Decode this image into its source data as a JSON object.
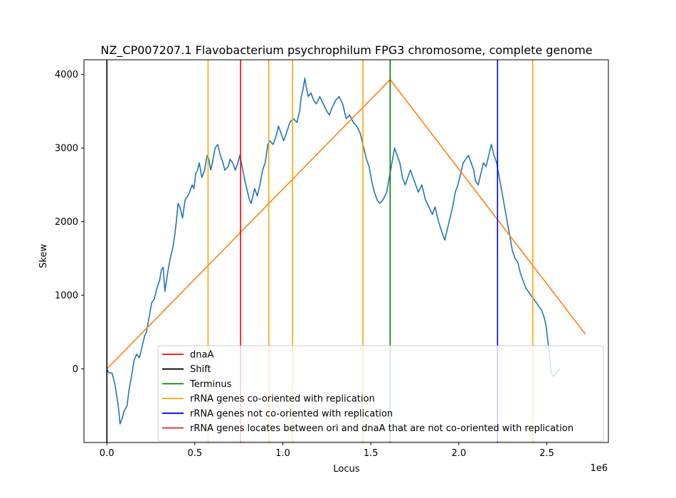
{
  "chart_data": {
    "type": "line",
    "title": "NZ_CP007207.1 Flavobacterium psychrophilum FPG3 chromosome, complete genome",
    "xlabel": "Locus",
    "ylabel": "Skew",
    "x_offset_label": "1e6",
    "xlim": [
      -130000,
      2850000
    ],
    "ylim": [
      -1000,
      4200
    ],
    "x_ticks": [
      0,
      500000,
      1000000,
      1500000,
      2000000,
      2500000
    ],
    "x_tick_labels": [
      "0.0",
      "0.5",
      "1.0",
      "1.5",
      "2.0",
      "2.5"
    ],
    "y_ticks": [
      0,
      1000,
      2000,
      3000,
      4000
    ],
    "y_tick_labels": [
      "0",
      "1000",
      "2000",
      "3000",
      "4000"
    ],
    "grid": false,
    "legend_position": "lower-right",
    "skew_series": {
      "color": "#1f77b4",
      "points": [
        [
          0,
          0
        ],
        [
          10000,
          -50
        ],
        [
          30000,
          -60
        ],
        [
          45000,
          -200
        ],
        [
          55000,
          -350
        ],
        [
          65000,
          -500
        ],
        [
          75000,
          -750
        ],
        [
          90000,
          -650
        ],
        [
          100000,
          -560
        ],
        [
          115000,
          -500
        ],
        [
          125000,
          -300
        ],
        [
          140000,
          -100
        ],
        [
          155000,
          120
        ],
        [
          170000,
          200
        ],
        [
          185000,
          150
        ],
        [
          200000,
          300
        ],
        [
          215000,
          450
        ],
        [
          225000,
          500
        ],
        [
          240000,
          700
        ],
        [
          255000,
          900
        ],
        [
          270000,
          950
        ],
        [
          285000,
          1100
        ],
        [
          300000,
          1200
        ],
        [
          310000,
          1350
        ],
        [
          320000,
          1380
        ],
        [
          330000,
          1050
        ],
        [
          345000,
          1300
        ],
        [
          360000,
          1500
        ],
        [
          375000,
          1650
        ],
        [
          385000,
          1800
        ],
        [
          395000,
          2000
        ],
        [
          405000,
          2250
        ],
        [
          415000,
          2200
        ],
        [
          430000,
          2050
        ],
        [
          445000,
          2300
        ],
        [
          460000,
          2350
        ],
        [
          470000,
          2400
        ],
        [
          485000,
          2500
        ],
        [
          495000,
          2450
        ],
        [
          505000,
          2650
        ],
        [
          515000,
          2700
        ],
        [
          525000,
          2800
        ],
        [
          540000,
          2600
        ],
        [
          555000,
          2700
        ],
        [
          570000,
          2900
        ],
        [
          580000,
          2850
        ],
        [
          590000,
          2700
        ],
        [
          600000,
          2800
        ],
        [
          615000,
          3000
        ],
        [
          630000,
          3050
        ],
        [
          645000,
          2900
        ],
        [
          660000,
          2800
        ],
        [
          670000,
          2700
        ],
        [
          690000,
          2750
        ],
        [
          700000,
          2850
        ],
        [
          715000,
          2800
        ],
        [
          730000,
          2700
        ],
        [
          745000,
          2800
        ],
        [
          755000,
          2900
        ],
        [
          765000,
          2800
        ],
        [
          780000,
          2600
        ],
        [
          795000,
          2450
        ],
        [
          810000,
          2300
        ],
        [
          820000,
          2250
        ],
        [
          830000,
          2350
        ],
        [
          840000,
          2450
        ],
        [
          855000,
          2350
        ],
        [
          870000,
          2500
        ],
        [
          885000,
          2700
        ],
        [
          900000,
          2800
        ],
        [
          915000,
          3050
        ],
        [
          925000,
          3100
        ],
        [
          945000,
          3050
        ],
        [
          960000,
          3150
        ],
        [
          975000,
          3300
        ],
        [
          990000,
          3200
        ],
        [
          1005000,
          3100
        ],
        [
          1020000,
          3200
        ],
        [
          1040000,
          3350
        ],
        [
          1060000,
          3400
        ],
        [
          1080000,
          3350
        ],
        [
          1095000,
          3500
        ],
        [
          1105000,
          3700
        ],
        [
          1115000,
          3800
        ],
        [
          1125000,
          3950
        ],
        [
          1135000,
          3800
        ],
        [
          1145000,
          3700
        ],
        [
          1160000,
          3750
        ],
        [
          1175000,
          3650
        ],
        [
          1190000,
          3600
        ],
        [
          1210000,
          3700
        ],
        [
          1230000,
          3600
        ],
        [
          1250000,
          3500
        ],
        [
          1265000,
          3450
        ],
        [
          1280000,
          3550
        ],
        [
          1300000,
          3650
        ],
        [
          1320000,
          3700
        ],
        [
          1340000,
          3600
        ],
        [
          1360000,
          3400
        ],
        [
          1380000,
          3450
        ],
        [
          1400000,
          3350
        ],
        [
          1420000,
          3300
        ],
        [
          1440000,
          3200
        ],
        [
          1455000,
          3050
        ],
        [
          1465000,
          2950
        ],
        [
          1475000,
          2850
        ],
        [
          1490000,
          2750
        ],
        [
          1505000,
          2550
        ],
        [
          1520000,
          2400
        ],
        [
          1535000,
          2300
        ],
        [
          1550000,
          2250
        ],
        [
          1570000,
          2300
        ],
        [
          1590000,
          2400
        ],
        [
          1605000,
          2600
        ],
        [
          1620000,
          2800
        ],
        [
          1635000,
          3000
        ],
        [
          1650000,
          2900
        ],
        [
          1665000,
          2800
        ],
        [
          1680000,
          2600
        ],
        [
          1695000,
          2500
        ],
        [
          1710000,
          2600
        ],
        [
          1725000,
          2700
        ],
        [
          1740000,
          2600
        ],
        [
          1755000,
          2500
        ],
        [
          1770000,
          2400
        ],
        [
          1790000,
          2500
        ],
        [
          1810000,
          2300
        ],
        [
          1830000,
          2200
        ],
        [
          1850000,
          2100
        ],
        [
          1865000,
          2200
        ],
        [
          1885000,
          2000
        ],
        [
          1905000,
          1850
        ],
        [
          1920000,
          1750
        ],
        [
          1935000,
          1900
        ],
        [
          1950000,
          2050
        ],
        [
          1965000,
          2200
        ],
        [
          1980000,
          2400
        ],
        [
          1995000,
          2500
        ],
        [
          2010000,
          2650
        ],
        [
          2025000,
          2800
        ],
        [
          2040000,
          2850
        ],
        [
          2055000,
          2900
        ],
        [
          2070000,
          2800
        ],
        [
          2085000,
          2700
        ],
        [
          2095000,
          2550
        ],
        [
          2110000,
          2500
        ],
        [
          2125000,
          2650
        ],
        [
          2140000,
          2800
        ],
        [
          2155000,
          2750
        ],
        [
          2170000,
          2900
        ],
        [
          2185000,
          3050
        ],
        [
          2200000,
          2900
        ],
        [
          2215000,
          2800
        ],
        [
          2230000,
          2600
        ],
        [
          2245000,
          2400
        ],
        [
          2260000,
          2200
        ],
        [
          2275000,
          2000
        ],
        [
          2290000,
          1800
        ],
        [
          2305000,
          1600
        ],
        [
          2320000,
          1500
        ],
        [
          2335000,
          1450
        ],
        [
          2350000,
          1300
        ],
        [
          2365000,
          1200
        ],
        [
          2380000,
          1100
        ],
        [
          2395000,
          1050
        ],
        [
          2410000,
          1000
        ],
        [
          2425000,
          950
        ],
        [
          2440000,
          900
        ],
        [
          2455000,
          850
        ],
        [
          2470000,
          800
        ],
        [
          2485000,
          700
        ],
        [
          2495000,
          600
        ],
        [
          2505000,
          400
        ],
        [
          2515000,
          200
        ],
        [
          2525000,
          -50
        ],
        [
          2535000,
          -100
        ],
        [
          2545000,
          -80
        ],
        [
          2555000,
          -50
        ],
        [
          2565000,
          -20
        ],
        [
          2575000,
          0
        ]
      ]
    },
    "triangle_series": {
      "color": "#ff7f0e",
      "points": [
        [
          0,
          0
        ],
        [
          1610000,
          3930
        ],
        [
          2720000,
          470
        ]
      ]
    },
    "vertical_markers": [
      {
        "x": 0,
        "color": "#000000",
        "label": "Shift"
      },
      {
        "x": 575000,
        "color": "#ffa500",
        "label": "rRNA genes co-oriented with replication"
      },
      {
        "x": 760000,
        "color": "#ff0000",
        "label": "dnaA"
      },
      {
        "x": 920000,
        "color": "#ffa500",
        "label": "rRNA genes co-oriented with replication"
      },
      {
        "x": 1055000,
        "color": "#ffa500",
        "label": "rRNA genes co-oriented with replication"
      },
      {
        "x": 1455000,
        "color": "#ffa500",
        "label": "rRNA genes co-oriented with replication"
      },
      {
        "x": 1610000,
        "color": "#008000",
        "label": "Terminus"
      },
      {
        "x": 2220000,
        "color": "#0000ff",
        "label": "rRNA genes not co-oriented with replication"
      },
      {
        "x": 2420000,
        "color": "#ffa500",
        "label": "rRNA genes co-oriented with replication"
      }
    ],
    "legend": [
      {
        "label": "dnaA",
        "color": "#ff0000"
      },
      {
        "label": "Shift",
        "color": "#000000"
      },
      {
        "label": "Terminus",
        "color": "#008000"
      },
      {
        "label": "rRNA genes co-oriented with replication",
        "color": "#ffa500"
      },
      {
        "label": "rRNA genes not co-oriented with replication",
        "color": "#0000ff"
      },
      {
        "label": "rRNA genes locates between ori and dnaA that are not co-oriented with replication",
        "color": "#d62728"
      }
    ]
  }
}
